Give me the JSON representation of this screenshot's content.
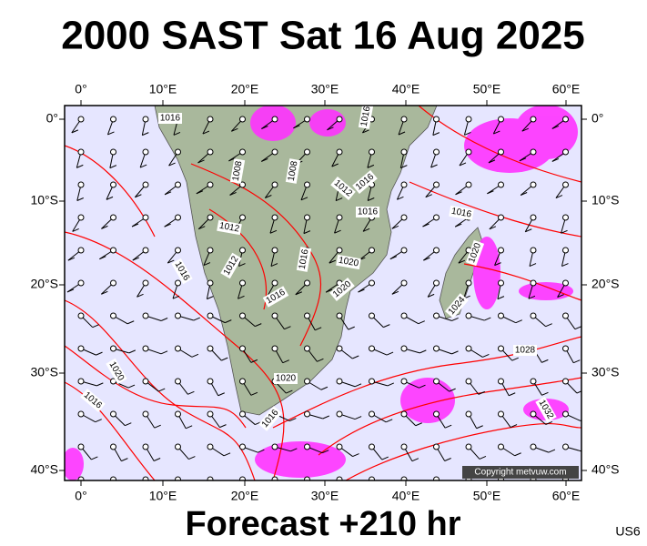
{
  "header": {
    "title": "2000 SAST Sat 16 Aug 2025"
  },
  "axes": {
    "longitudes": [
      "0°",
      "10°E",
      "20°E",
      "30°E",
      "40°E",
      "50°E",
      "60°E"
    ],
    "latitudes": [
      "0°",
      "10°S",
      "20°S",
      "30°S",
      "40°S"
    ]
  },
  "isobar_labels": [
    "1016",
    "1016",
    "1008",
    "1008",
    "1012",
    "1016",
    "1016",
    "1016",
    "1012",
    "1012",
    "1016",
    "1016",
    "1016",
    "1020",
    "1020",
    "1020",
    "1024",
    "1020",
    "1016",
    "1020",
    "1016",
    "1028",
    "1032"
  ],
  "copyright": "Copyright metvuw.com",
  "footer": {
    "title": "Forecast +210 hr",
    "code": "US6"
  }
}
